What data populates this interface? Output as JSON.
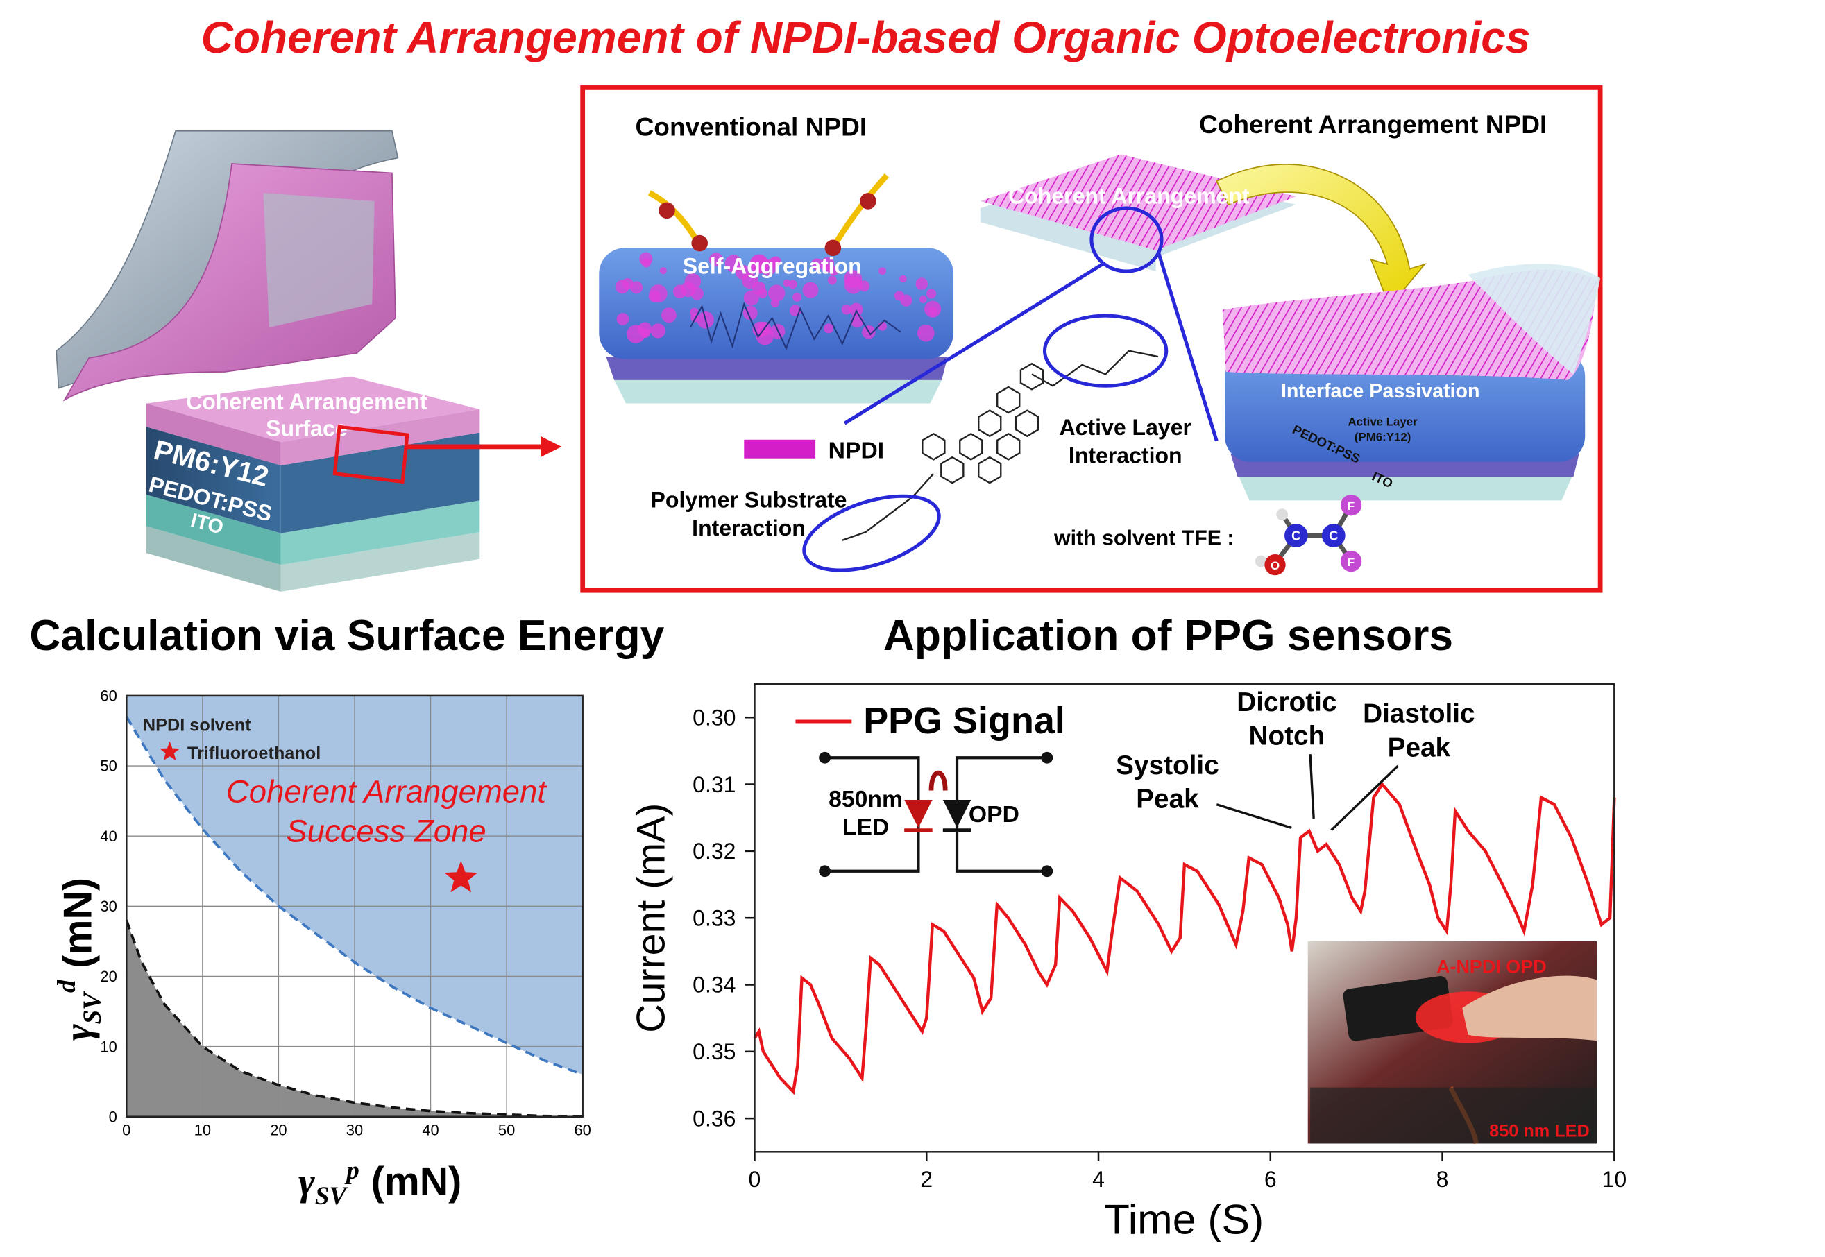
{
  "title": "Coherent Arrangement of NPDI-based Organic Optoelectronics",
  "device": {
    "top_layer": [
      "Coherent Arrangement",
      "Surface"
    ],
    "layers": [
      "PM6:Y12",
      "PEDOT:PSS",
      "ITO"
    ]
  },
  "scheme": {
    "conventional": "Conventional NPDI",
    "coherent": "Coherent Arrangement NPDI",
    "self_aggregation": "Self-Aggregation",
    "coherent_label": "Coherent Arrangement",
    "passivation": "Interface Passivation",
    "active_layer": [
      "Active Layer",
      "(PM6:Y12)"
    ],
    "right_layers": [
      "PEDOT:PSS",
      "ITO"
    ],
    "legend": "NPDI",
    "polymer_interaction": [
      "Polymer Substrate",
      "Interaction"
    ],
    "active_interaction": [
      "Active Layer",
      "Interaction"
    ],
    "solvent": "with solvent TFE :",
    "atoms": [
      "C",
      "C",
      "O",
      "F",
      "F"
    ]
  },
  "sections": [
    "Calculation via Surface Energy",
    "Application of PPG sensors"
  ],
  "chart_data": [
    {
      "type": "line",
      "x_label": {
        "symbol": "γ",
        "sub": "SV",
        "sup": "p",
        "unit": "(mN)"
      },
      "y_label": {
        "symbol": "γ",
        "sub": "SV",
        "sup": "d",
        "unit": "(mN)"
      },
      "xlim": [
        0,
        60
      ],
      "ylim": [
        0,
        60
      ],
      "xticks": [
        0,
        10,
        20,
        30,
        40,
        50,
        60
      ],
      "yticks": [
        0,
        10,
        20,
        30,
        40,
        50,
        60
      ],
      "grid": true,
      "legend_title": "NPDI solvent",
      "annotation": [
        "Coherent Arrangement",
        "Success Zone"
      ],
      "series": [
        {
          "color": "#3d78c0",
          "dash": true,
          "fill": "above",
          "fill_color": "#a9c3e3",
          "x": [
            0,
            5,
            10,
            15,
            20,
            25,
            30,
            35,
            40,
            45,
            50,
            55,
            60
          ],
          "values": [
            57,
            48,
            41,
            35,
            30,
            26,
            22,
            18.5,
            15.5,
            13,
            10.5,
            8,
            6
          ]
        },
        {
          "color": "#111111",
          "dash": true,
          "fill": "below",
          "fill_color": "#8c8c8c",
          "x": [
            0,
            2,
            5,
            10,
            15,
            20,
            25,
            30,
            35,
            40,
            45,
            50,
            55,
            60
          ],
          "values": [
            28,
            22,
            16,
            10,
            6.5,
            4.5,
            3,
            2,
            1.3,
            0.8,
            0.5,
            0.3,
            0.1,
            0
          ]
        }
      ],
      "markers": [
        {
          "name": "Trifluoroethanol",
          "color": "#e31a1c",
          "x": 44,
          "y": 34
        }
      ]
    },
    {
      "type": "line",
      "x_label": "Time (S)",
      "y_label": "Current (mA)",
      "xlim": [
        0,
        10
      ],
      "ylim": [
        0.365,
        0.295
      ],
      "xticks": [
        0,
        2,
        4,
        6,
        8,
        10
      ],
      "yticks": [
        {
          "value": 0.3,
          "label": "0.30"
        },
        0.31,
        0.32,
        0.33,
        0.34,
        0.35,
        0.36
      ],
      "series": [
        {
          "name": "PPG Signal",
          "color": "#e8151b",
          "x": [
            0,
            0.05,
            0.1,
            0.3,
            0.45,
            0.5,
            0.55,
            0.65,
            0.75,
            0.9,
            1.1,
            1.25,
            1.3,
            1.35,
            1.45,
            1.6,
            1.8,
            1.95,
            2.0,
            2.07,
            2.2,
            2.4,
            2.55,
            2.65,
            2.75,
            2.82,
            2.95,
            3.15,
            3.3,
            3.4,
            3.5,
            3.55,
            3.7,
            3.9,
            4.1,
            4.15,
            4.25,
            4.45,
            4.7,
            4.85,
            4.95,
            5.0,
            5.15,
            5.4,
            5.6,
            5.68,
            5.75,
            5.9,
            6.1,
            6.2,
            6.25,
            6.3,
            6.35,
            6.45,
            6.55,
            6.65,
            6.8,
            6.95,
            7.05,
            7.1,
            7.2,
            7.3,
            7.5,
            7.7,
            7.85,
            7.95,
            8.05,
            8.1,
            8.15,
            8.3,
            8.5,
            8.7,
            8.85,
            8.95,
            9.05,
            9.15,
            9.3,
            9.5,
            9.7,
            9.85,
            9.95,
            10.0
          ],
          "values": [
            0.348,
            0.347,
            0.35,
            0.354,
            0.356,
            0.352,
            0.339,
            0.34,
            0.343,
            0.348,
            0.351,
            0.354,
            0.346,
            0.336,
            0.337,
            0.34,
            0.344,
            0.347,
            0.345,
            0.331,
            0.332,
            0.336,
            0.339,
            0.344,
            0.342,
            0.328,
            0.33,
            0.334,
            0.338,
            0.34,
            0.337,
            0.327,
            0.329,
            0.333,
            0.338,
            0.333,
            0.324,
            0.326,
            0.331,
            0.335,
            0.333,
            0.322,
            0.323,
            0.328,
            0.334,
            0.329,
            0.321,
            0.322,
            0.327,
            0.331,
            0.335,
            0.33,
            0.318,
            0.317,
            0.32,
            0.319,
            0.322,
            0.327,
            0.329,
            0.326,
            0.312,
            0.31,
            0.313,
            0.32,
            0.325,
            0.33,
            0.332,
            0.325,
            0.314,
            0.317,
            0.32,
            0.325,
            0.329,
            0.332,
            0.325,
            0.312,
            0.313,
            0.318,
            0.325,
            0.331,
            0.33,
            0.312
          ]
        }
      ],
      "circuit": {
        "led": [
          "850nm",
          "LED"
        ],
        "opd": "OPD"
      },
      "annotations": [
        [
          "Systolic",
          "Peak"
        ],
        [
          "Dicrotic",
          "Notch"
        ],
        [
          "Diastolic",
          "Peak"
        ]
      ],
      "photo_labels": [
        "A-NPDI OPD",
        "850 nm LED"
      ]
    }
  ]
}
